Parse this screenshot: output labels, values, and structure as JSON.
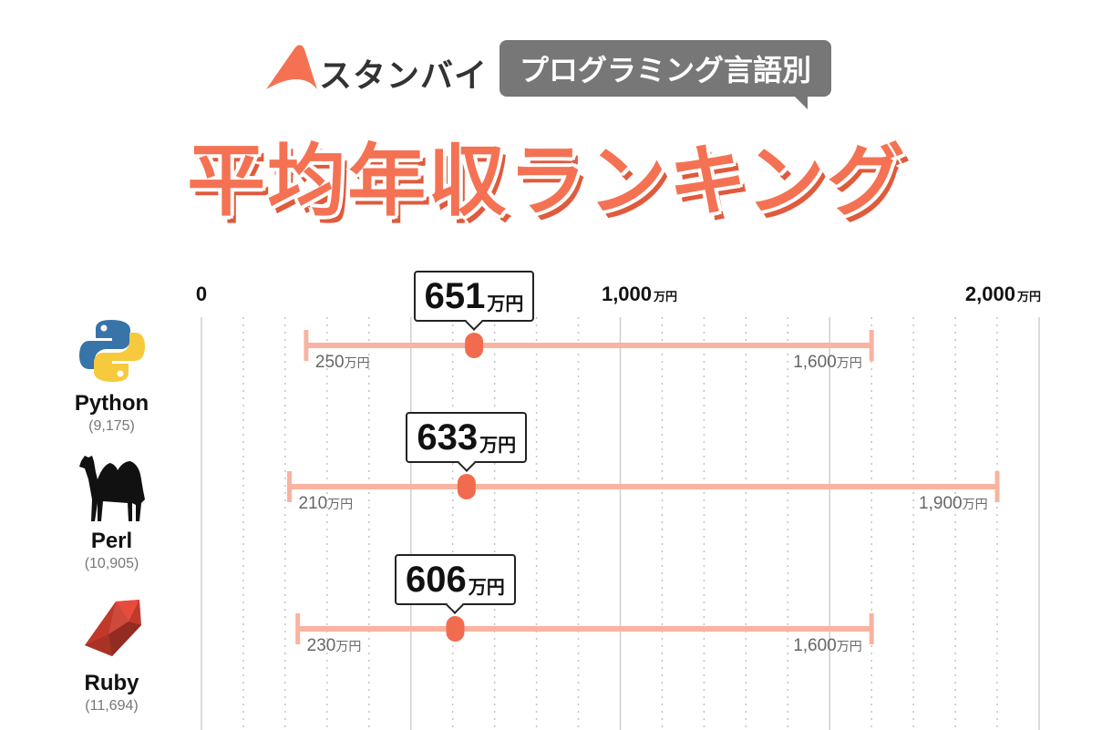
{
  "header": {
    "logo_text": "スタンバイ",
    "tag": "プログラミング言語別",
    "title": "平均年収ランキング"
  },
  "unit": "万円",
  "colors": {
    "accent": "#f47253",
    "range_bar": "#f9b3a0",
    "marker": "#f16c4e",
    "grid": "#cccccc"
  },
  "chart_data": {
    "type": "range",
    "xlim": [
      0,
      2000
    ],
    "x_ticks": [
      {
        "value": 0,
        "label": "0",
        "unit": ""
      },
      {
        "value": 1000,
        "label": "1,000",
        "unit": "万円"
      },
      {
        "value": 2000,
        "label": "2,000",
        "unit": "万円"
      }
    ],
    "grid": "major solid every 500, minor dotted every 100",
    "categories": [
      "Python",
      "Perl",
      "Ruby"
    ],
    "series": [
      {
        "name": "Python",
        "count": "(9,175)",
        "icon": "python-logo-icon",
        "min": 250,
        "avg": 651,
        "max": 1600,
        "min_label": "250",
        "avg_label": "651",
        "max_label": "1,600"
      },
      {
        "name": "Perl",
        "count": "(10,905)",
        "icon": "camel-icon",
        "min": 210,
        "avg": 633,
        "max": 1900,
        "min_label": "210",
        "avg_label": "633",
        "max_label": "1,900"
      },
      {
        "name": "Ruby",
        "count": "(11,694)",
        "icon": "ruby-gem-icon",
        "min": 230,
        "avg": 606,
        "max": 1600,
        "min_label": "230",
        "avg_label": "606",
        "max_label": "1,600"
      }
    ]
  }
}
